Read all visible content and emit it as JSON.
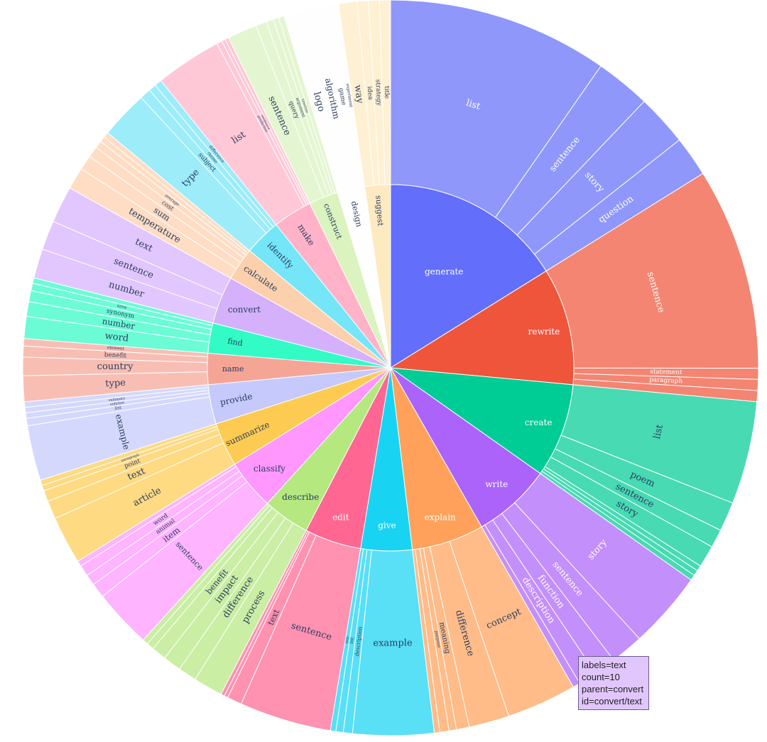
{
  "chart_data": {
    "type": "sunburst",
    "title": "",
    "root_children": [
      {
        "label": "generate",
        "color": "#636efa",
        "children": [
          {
            "label": "list",
            "value": 60
          },
          {
            "label": "sentence",
            "value": 15
          },
          {
            "label": "story",
            "value": 14
          },
          {
            "label": "question",
            "value": 11
          }
        ]
      },
      {
        "label": "rewrite",
        "color": "#ef553b",
        "children": [
          {
            "label": "sentence",
            "value": 55
          },
          {
            "label": "statement",
            "value": 3
          },
          {
            "label": "paragraph",
            "value": 3
          },
          {
            "label": "",
            "value": 3
          }
        ]
      },
      {
        "label": "create",
        "color": "#00cc96",
        "children": [
          {
            "label": "list",
            "value": 28
          },
          {
            "label": "poem",
            "value": 8
          },
          {
            "label": "sentence",
            "value": 5
          },
          {
            "label": "story",
            "value": 6
          },
          {
            "label": "",
            "value": 1.5
          },
          {
            "label": "",
            "value": 1.5
          },
          {
            "label": "",
            "value": 1.5
          }
        ]
      },
      {
        "label": "write",
        "color": "#ab63fa",
        "children": [
          {
            "label": "story",
            "value": 21
          },
          {
            "label": "sentence",
            "value": 9
          },
          {
            "label": "function",
            "value": 6
          },
          {
            "label": "description",
            "value": 5
          },
          {
            "label": "",
            "value": 2
          }
        ]
      },
      {
        "label": "explain",
        "color": "#ffa15a",
        "children": [
          {
            "label": "concept",
            "value": 19
          },
          {
            "label": "difference",
            "value": 11
          },
          {
            "label": "meaning",
            "value": 3.5
          },
          {
            "label": "purpose",
            "value": 2
          },
          {
            "label": "",
            "value": 2.5
          },
          {
            "label": "",
            "value": 1.5
          }
        ]
      },
      {
        "label": "give",
        "color": "#19d3f3",
        "children": [
          {
            "label": "example",
            "value": 22
          },
          {
            "label": "description",
            "value": 2.5
          },
          {
            "label": "list",
            "value": 2
          },
          {
            "label": "title",
            "value": 1.5
          }
        ]
      },
      {
        "label": "edit",
        "color": "#ff6692",
        "children": [
          {
            "label": "sentence",
            "value": 25
          },
          {
            "label": "text",
            "value": 4
          },
          {
            "label": "",
            "value": 1
          },
          {
            "label": "",
            "value": 1
          }
        ]
      },
      {
        "label": "describe",
        "color": "#b6e880",
        "children": [
          {
            "label": "process",
            "value": 8
          },
          {
            "label": "difference",
            "value": 5
          },
          {
            "label": "impact",
            "value": 5
          },
          {
            "label": "benefit",
            "value": 4
          },
          {
            "label": "",
            "value": 2
          },
          {
            "label": "",
            "value": 1.5
          }
        ]
      },
      {
        "label": "classify",
        "color": "#ff97ff",
        "children": [
          {
            "label": "sentence",
            "value": 16
          },
          {
            "label": "item",
            "value": 4
          },
          {
            "label": "animal",
            "value": 3
          },
          {
            "label": "word",
            "value": 3
          },
          {
            "label": "",
            "value": 1.5
          }
        ]
      },
      {
        "label": "summarize",
        "color": "#fecb52",
        "children": [
          {
            "label": "article",
            "value": 13
          },
          {
            "label": "text",
            "value": 5
          },
          {
            "label": "point",
            "value": 3
          },
          {
            "label": "paragraph",
            "value": 1.5
          },
          {
            "label": "",
            "value": 1.5
          }
        ]
      },
      {
        "label": "provide",
        "color": "#c5c9fc",
        "children": [
          {
            "label": "example",
            "value": 15
          },
          {
            "label": "list",
            "value": 2
          },
          {
            "label": "solution",
            "value": 1.5
          },
          {
            "label": "summary",
            "value": 1.5
          },
          {
            "label": "",
            "value": 1.5
          }
        ]
      },
      {
        "label": "name",
        "color": "#f5a596",
        "children": [
          {
            "label": "type",
            "value": 7
          },
          {
            "label": "country",
            "value": 5
          },
          {
            "label": "benefit",
            "value": 3
          },
          {
            "label": "element",
            "value": 2
          }
        ]
      },
      {
        "label": "find",
        "color": "#32fbc6",
        "children": [
          {
            "label": "word",
            "value": 6
          },
          {
            "label": "number",
            "value": 4
          },
          {
            "label": "synonym",
            "value": 3
          },
          {
            "label": "area",
            "value": 2
          },
          {
            "label": "",
            "value": 1.5
          }
        ]
      },
      {
        "label": "convert",
        "color": "#d5b1fc",
        "children": [
          {
            "label": "number",
            "value": 8
          },
          {
            "label": "sentence",
            "value": 8
          },
          {
            "label": "text",
            "value": 10
          }
        ]
      },
      {
        "label": "calculate",
        "color": "#fdd0ad",
        "children": [
          {
            "label": "temperature",
            "value": 6
          },
          {
            "label": "sum",
            "value": 4
          },
          {
            "label": "cost",
            "value": 3
          },
          {
            "label": "average",
            "value": 2
          },
          {
            "label": "",
            "value": 1.5
          },
          {
            "label": "",
            "value": 1.5
          }
        ]
      },
      {
        "label": "identify",
        "color": "#75e5f8",
        "children": [
          {
            "label": "type",
            "value": 13
          },
          {
            "label": "subject",
            "value": 3
          },
          {
            "label": "theme",
            "value": 2
          },
          {
            "label": "difference",
            "value": 2
          }
        ]
      },
      {
        "label": "make",
        "color": "#ffb2c8",
        "children": [
          {
            "label": "list",
            "value": 18
          },
          {
            "label": "prediction",
            "value": 1.5
          },
          {
            "label": "sentence",
            "value": 1
          },
          {
            "label": "",
            "value": 1
          }
        ]
      },
      {
        "label": "construct",
        "color": "#daf3bf",
        "children": [
          {
            "label": "sentence",
            "value": 8
          },
          {
            "label": "query",
            "value": 3
          },
          {
            "label": "argument",
            "value": 2
          },
          {
            "label": "timeline",
            "value": 1.5
          },
          {
            "label": "",
            "value": 1.5
          }
        ]
      },
      {
        "label": "design",
        "color": "#fefefe",
        "children": [
          {
            "label": "logo",
            "value": 6
          },
          {
            "label": "algorithm",
            "value": 4
          },
          {
            "label": "game",
            "value": 3
          },
          {
            "label": "experiment",
            "value": 2
          }
        ]
      },
      {
        "label": "suggest",
        "color": "#feeac1",
        "children": [
          {
            "label": "way",
            "value": 5
          },
          {
            "label": "idea",
            "value": 3
          },
          {
            "label": "strategy",
            "value": 3
          },
          {
            "label": "title",
            "value": 3
          }
        ]
      }
    ]
  },
  "tooltip": {
    "line1": "labels=text",
    "line2": "count=10",
    "line3": "parent=convert",
    "line4": "id=convert/text"
  }
}
